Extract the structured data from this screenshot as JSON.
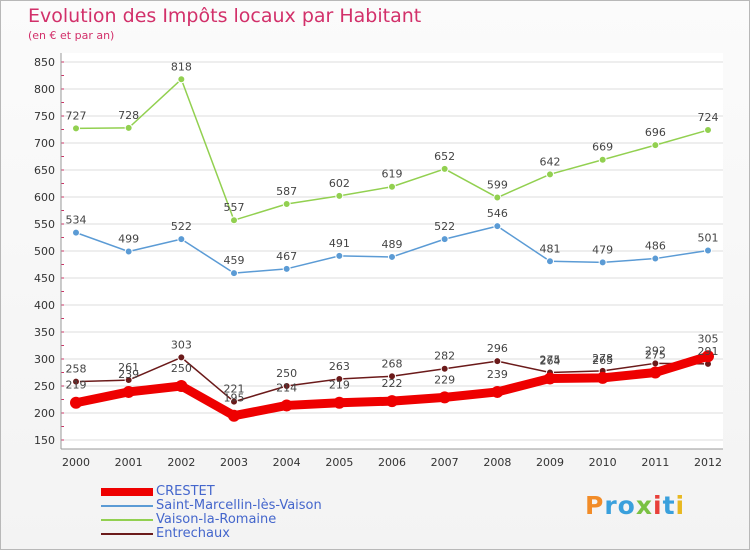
{
  "title": "Evolution des Impôts locaux par Habitant",
  "subtitle": "(en € et par an)",
  "logo": [
    "P",
    "r",
    "o",
    "x",
    "i",
    "t",
    "i"
  ],
  "logo_colors": [
    "#f28c28",
    "#3aa0dc",
    "#3aa0dc",
    "#7ac143",
    "#e8403a",
    "#3aa0dc",
    "#e8b820"
  ],
  "chart_data": {
    "type": "line",
    "x": [
      "2000",
      "2001",
      "2002",
      "2003",
      "2004",
      "2005",
      "2006",
      "2007",
      "2008",
      "2009",
      "2010",
      "2011",
      "2012"
    ],
    "ylim": [
      150,
      850
    ],
    "yticks": [
      150,
      200,
      250,
      300,
      350,
      400,
      450,
      500,
      550,
      600,
      650,
      700,
      750,
      800,
      850
    ],
    "grid": "horizontal",
    "legend_position": "bottom-left",
    "series": [
      {
        "name": "CRESTET",
        "color": "#ee0000",
        "values": [
          219,
          239,
          250,
          195,
          214,
          219,
          222,
          229,
          239,
          264,
          265,
          275,
          305
        ]
      },
      {
        "name": "Saint-Marcellin-lès-Vaison",
        "color": "#5b9bd5",
        "values": [
          534,
          499,
          522,
          459,
          467,
          491,
          489,
          522,
          546,
          481,
          479,
          486,
          501
        ]
      },
      {
        "name": "Vaison-la-Romaine",
        "color": "#92d050",
        "values": [
          727,
          728,
          818,
          557,
          587,
          602,
          619,
          652,
          599,
          642,
          669,
          696,
          724
        ]
      },
      {
        "name": "Entrechaux",
        "color": "#6b1a1a",
        "values": [
          258,
          261,
          303,
          221,
          250,
          263,
          268,
          282,
          296,
          275,
          278,
          292,
          291
        ]
      }
    ]
  }
}
